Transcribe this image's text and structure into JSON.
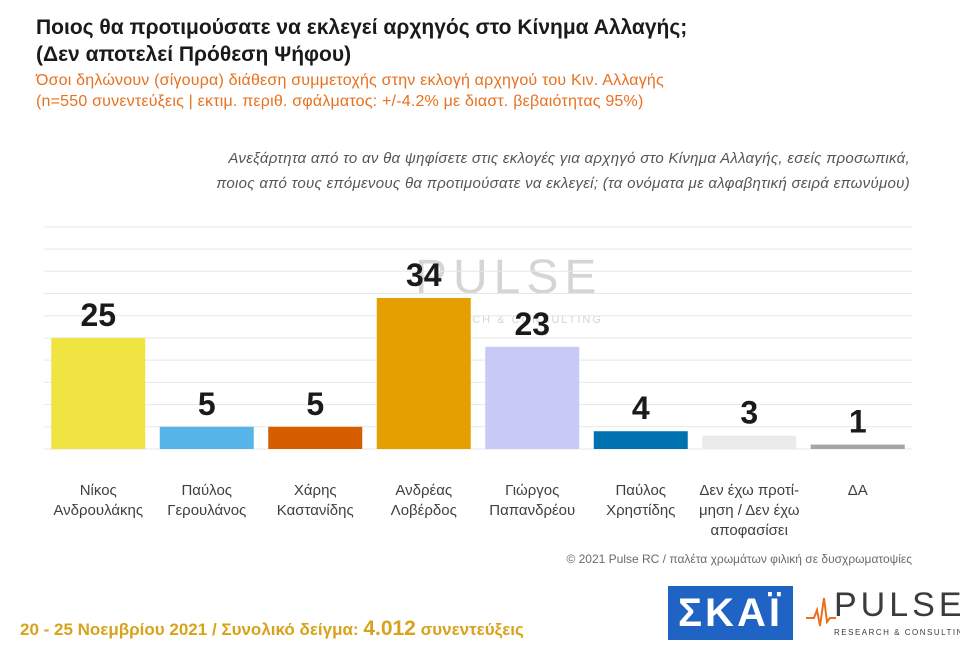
{
  "title_line1": "Ποιος θα προτιμούσατε να εκλεγεί αρχηγός στο Κίνημα Αλλαγής;",
  "title_line2": "(Δεν αποτελεί Πρόθεση Ψήφου)",
  "subtitle_line1": "Όσοι δηλώνουν (σίγουρα) διάθεση συμμετοχής στην εκλογή αρχηγού του Κιν. Αλλαγής",
  "subtitle_line2": "(n=550 συνεντεύξεις | εκτιμ. περιθ. σφάλματος: +/-4.2% με διαστ. βεβαιότητας 95%)",
  "question_line1": "Ανεξάρτητα από το αν θα ψηφίσετε στις εκλογές για αρχηγό στο Κίνημα Αλλαγής, εσείς προσωπικά,",
  "question_line2": "ποιος από τους επόμενους θα προτιμούσατε να εκλεγεί; (τα ονόματα με αλφαβητική σειρά επωνύμου)",
  "credit": "© 2021 Pulse RC  /  παλέτα χρωμάτων φιλική σε δυσχρωματοψίες",
  "footer_dates": "20 - 25  Νοεμβρίου 2021  /  Συνολικό δείγμα: ",
  "footer_sample": "4.012",
  "footer_suffix": " συνεντεύξεις",
  "logo_skai": "ΣΚΑΪ",
  "logo_pulse": "PULSE",
  "logo_pulse_sub": "RESEARCH & CONSULTING",
  "watermark_pulse": "PULSE",
  "watermark_sub": "RESEARCH & CONSULTING",
  "chart_data": {
    "type": "bar",
    "categories": [
      [
        "Νίκος",
        "Ανδρουλάκης"
      ],
      [
        "Παύλος",
        "Γερουλάνος"
      ],
      [
        "Χάρης",
        "Καστανίδης"
      ],
      [
        "Ανδρέας",
        "Λοβέρδος"
      ],
      [
        "Γιώργος",
        "Παπανδρέου"
      ],
      [
        "Παύλος",
        "Χρηστίδης"
      ],
      [
        "Δεν έχω προτί-",
        "μηση / Δεν έχω",
        "αποφασίσει"
      ],
      [
        "ΔΑ"
      ]
    ],
    "values": [
      25,
      5,
      5,
      34,
      23,
      4,
      3,
      1
    ],
    "colors": [
      "#f0e442",
      "#56b4e9",
      "#d55e00",
      "#e69f00",
      "#c9c9f7",
      "#0072b2",
      "#ebebeb",
      "#a6a6a6"
    ],
    "ylim": [
      0,
      52
    ],
    "grid": true
  }
}
